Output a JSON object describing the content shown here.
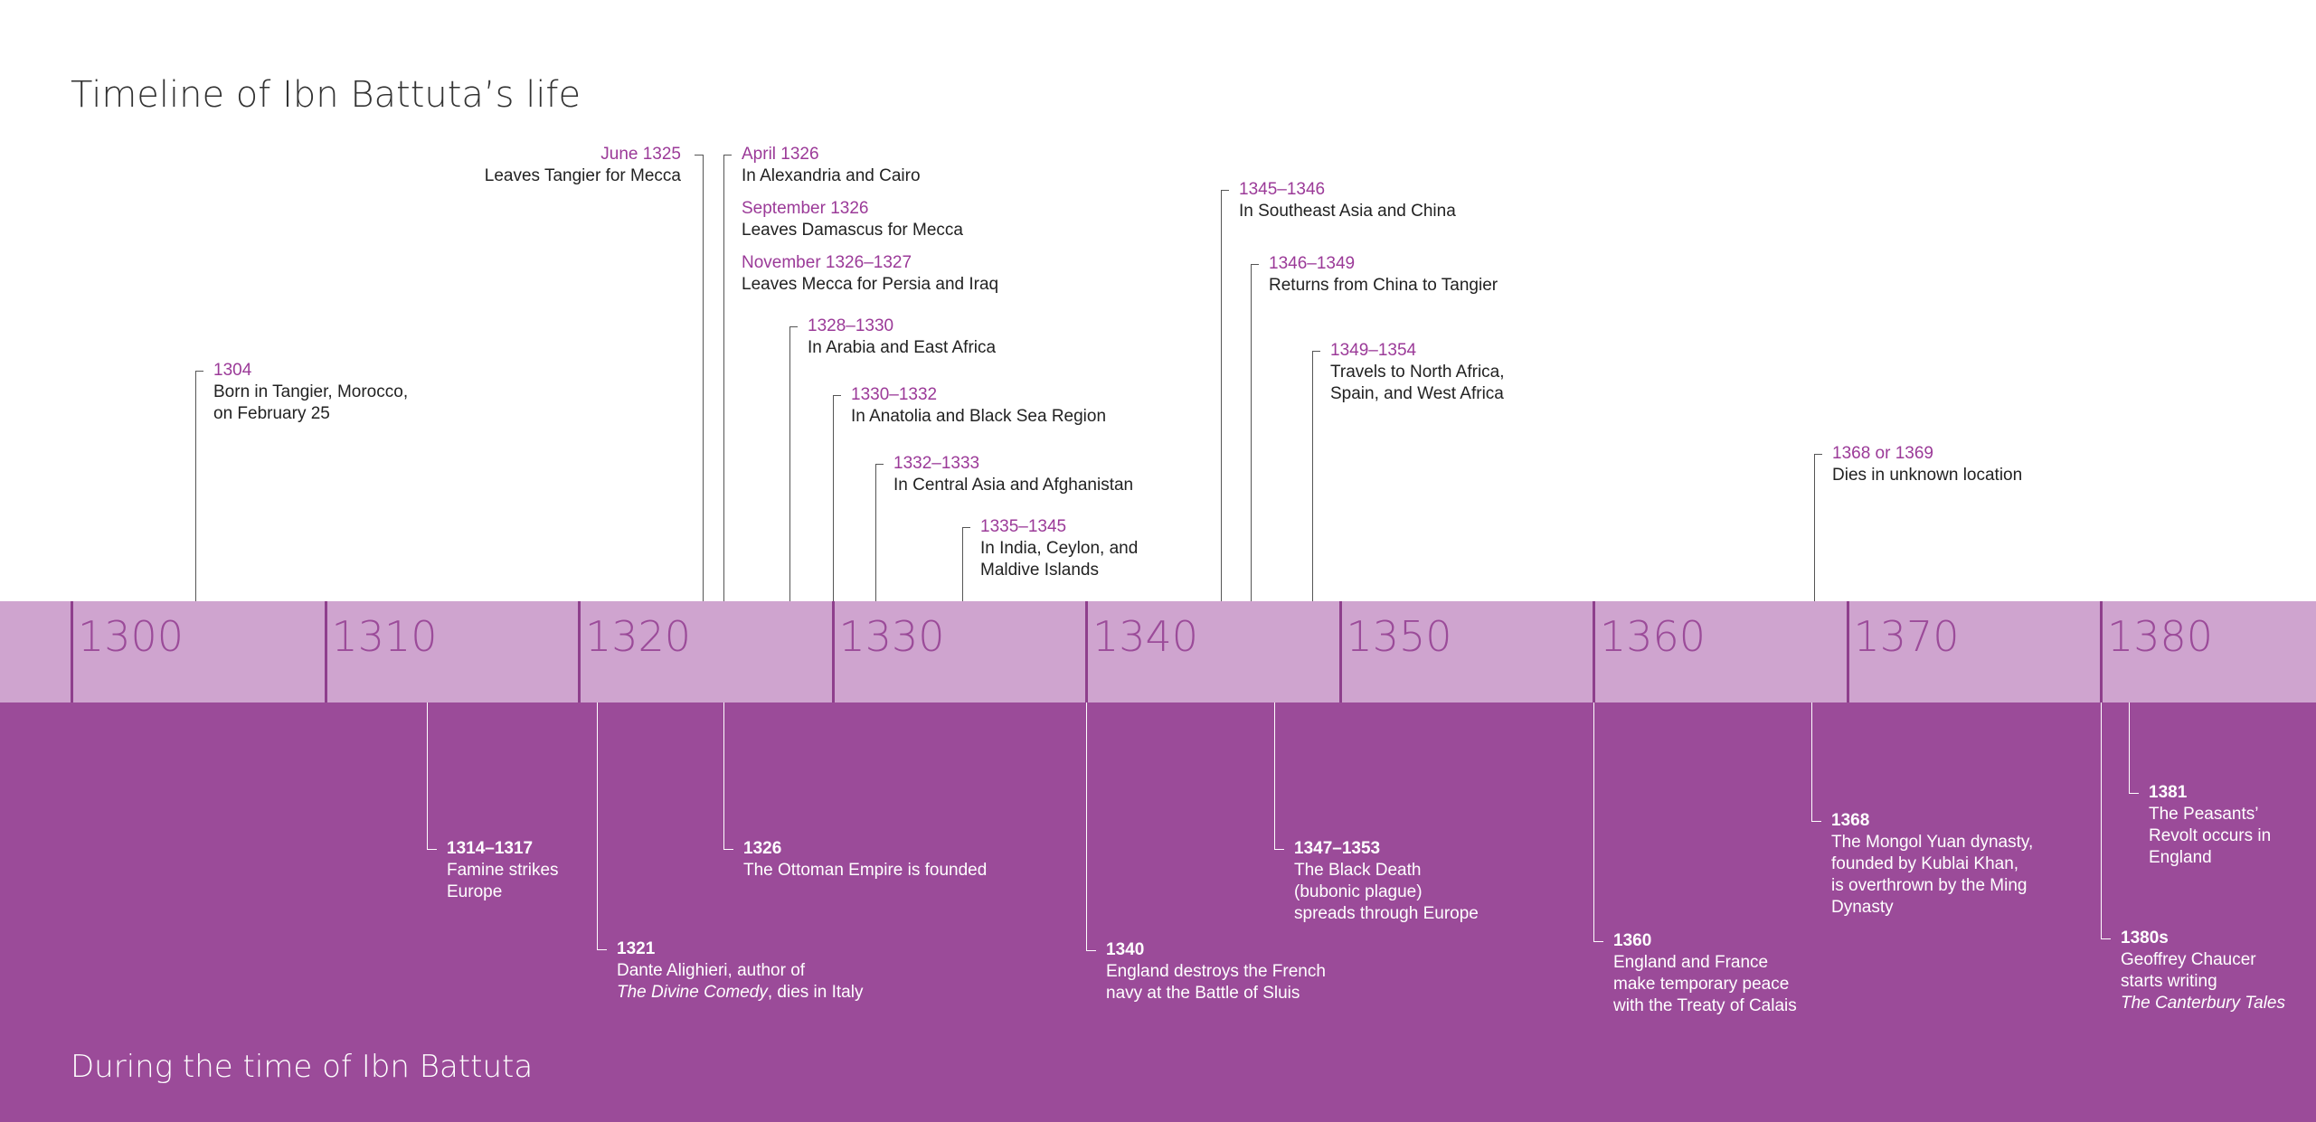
{
  "titles": {
    "main": "Timeline of Ibn Battuta’s life",
    "lower": "During the time of Ibn Battuta"
  },
  "colors": {
    "band_light": "#cfa4cf",
    "band_dark": "#9b4b99",
    "tick_dark": "#8e3f8c",
    "date_purple": "#9b3a98",
    "text_dark": "#222222",
    "line_gray": "#555555",
    "white": "#ffffff"
  },
  "decades": [
    "1300",
    "1310",
    "1320",
    "1330",
    "1340",
    "1350",
    "1360",
    "1370",
    "1380"
  ],
  "life_events": [
    {
      "year": 1304.9,
      "date": "1304",
      "text": "Born in Tangier, Morocco,\non February 25",
      "side": "right",
      "row": 0
    },
    {
      "year": 1324.9,
      "date": "June 1325",
      "text": "Leaves Tangier for Mecca",
      "side": "left",
      "row": 1
    },
    {
      "year": 1325.7,
      "date": "April 1326",
      "text": "In Alexandria and Cairo",
      "side": "right",
      "row": 1,
      "extra": [
        {
          "date": "September 1326",
          "text": "Leaves Damascus for Mecca"
        },
        {
          "date": "November 1326–1327",
          "text": "Leaves Mecca for Persia and Iraq"
        }
      ]
    },
    {
      "year": 1328.3,
      "date": "1328–1330",
      "text": "In Arabia and East Africa",
      "side": "right",
      "row": 2
    },
    {
      "year": 1330.0,
      "date": "1330–1332",
      "text": "In Anatolia and Black Sea Region",
      "side": "right",
      "row": 3
    },
    {
      "year": 1331.7,
      "date": "1332–1333",
      "text": "In Central Asia and Afghanistan",
      "side": "right",
      "row": 4
    },
    {
      "year": 1335.1,
      "date": "1335–1345",
      "text": "In India, Ceylon, and\nMaldive Islands",
      "side": "right",
      "row": 5
    },
    {
      "year": 1345.3,
      "date": "1345–1346",
      "text": "In Southeast Asia and China",
      "side": "right",
      "row": 6
    },
    {
      "year": 1346.5,
      "date": "1346–1349",
      "text": "Returns from China to Tangier",
      "side": "right",
      "row": 7
    },
    {
      "year": 1348.9,
      "date": "1349–1354",
      "text": "Travels to North Africa,\nSpain, and West Africa",
      "side": "right",
      "row": 8
    },
    {
      "year": 1368.7,
      "date": "1368 or 1369",
      "text": "Dies in unknown location",
      "side": "right",
      "row": 9
    }
  ],
  "world_events": [
    {
      "year": 1314.0,
      "date": "1314–1317",
      "text": "Famine strikes\nEurope",
      "row": 0
    },
    {
      "year": 1320.7,
      "date": "1321",
      "text": "Dante Alighieri, author of",
      "text_italic": "The Divine Comedy",
      "text_after": ", dies in Italy",
      "row": 1
    },
    {
      "year": 1325.7,
      "date": "1326",
      "text": "The Ottoman Empire is founded",
      "row": 2
    },
    {
      "year": 1340.0,
      "date": "1340",
      "text": "England destroys the French\nnavy at the Battle of Sluis",
      "row": 3
    },
    {
      "year": 1347.4,
      "date": "1347–1353",
      "text": "The Black Death\n(bubonic plague)\nspreads through Europe",
      "row": 4
    },
    {
      "year": 1360.0,
      "date": "1360",
      "text": "England and France\nmake temporary peace\nwith the Treaty of Calais",
      "row": 5
    },
    {
      "year": 1368.6,
      "date": "1368",
      "text": "The Mongol Yuan dynasty,\nfounded by Kublai Khan,\nis overthrown by the Ming\nDynasty",
      "row": 6
    },
    {
      "year": 1381.1,
      "date": "1381",
      "text": "The Peasants’\nRevolt occurs in\nEngland",
      "row": 7
    },
    {
      "year": 1380.0,
      "date": "1380s",
      "text": "Geoffrey Chaucer\nstarts writing",
      "text_italic_line": "The Canterbury Tales",
      "row": 8
    }
  ]
}
